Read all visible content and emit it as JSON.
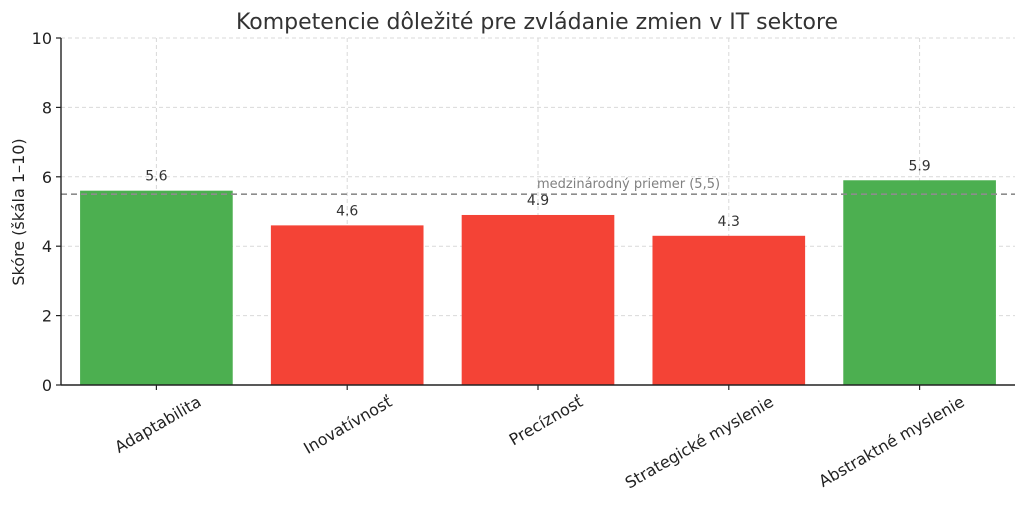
{
  "chart_data": {
    "type": "bar",
    "title": "Kompetencie dôležité pre zvládanie zmien v IT sektore",
    "xlabel": "",
    "ylabel": "Skóre (škála 1–10)",
    "ylim": [
      0,
      10
    ],
    "yticks": [
      0,
      2,
      4,
      6,
      8,
      10
    ],
    "grid": true,
    "categories": [
      "Adaptabilita",
      "Inovatívnosť",
      "Precíznosť",
      "Strategické myslenie",
      "Abstraktné myslenie"
    ],
    "values": [
      5.6,
      4.6,
      4.9,
      4.3,
      5.9
    ],
    "data_labels": [
      "5.6",
      "4.6",
      "4.9",
      "4.3",
      "5.9"
    ],
    "bar_colors": [
      "#4caf50",
      "#f44336",
      "#f44336",
      "#f44336",
      "#4caf50"
    ],
    "reference_line": {
      "value": 5.5,
      "label": "medzinárodný priemer (5,5)",
      "color": "#8c8c8c",
      "style": "dashed"
    }
  }
}
